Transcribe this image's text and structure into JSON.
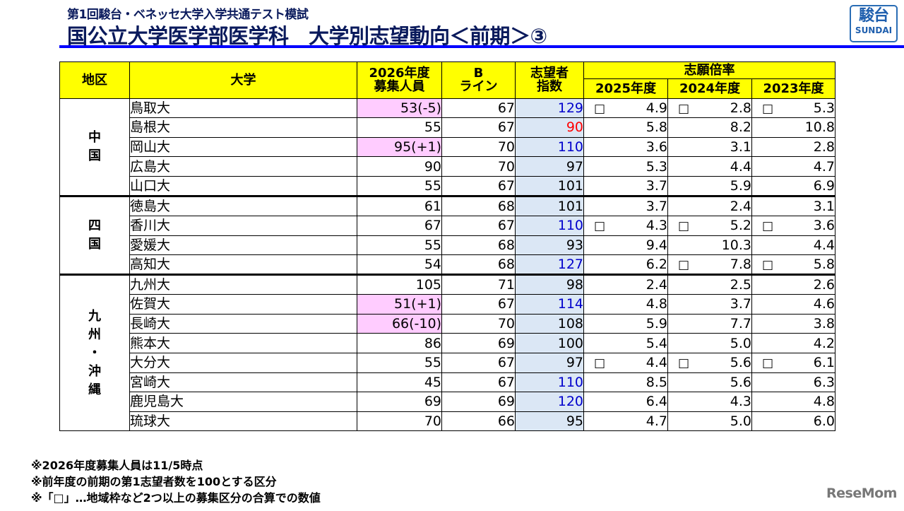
{
  "header": {
    "subtitle": "第1回駿台・ベネッセ大学入学共通テスト模試",
    "title": "国公立大学医学部医学科　大学別志望動向＜前期＞③",
    "logo_kanji": "駿台",
    "logo_en": "SUNDAI",
    "accent_color": "#0000ff"
  },
  "table": {
    "columns": {
      "region": "地区",
      "university": "大学",
      "capacity_line1": "2026年度",
      "capacity_line2": "募集人員",
      "bline_line1": "B",
      "bline_line2": "ライン",
      "index_line1": "志望者",
      "index_line2": "指数",
      "ratio_group": "志願倍率",
      "ratio_2025": "2025年度",
      "ratio_2024": "2024年度",
      "ratio_2023": "2023年度"
    },
    "box_glyph": "□",
    "regions": [
      {
        "name_chars": [
          "中",
          "国"
        ],
        "rows": [
          {
            "university": "鳥取大",
            "capacity": "53(-5)",
            "capacity_changed": true,
            "bline": "67",
            "index": "129",
            "index_color": "blue",
            "r2025": "4.9",
            "r2025_box": true,
            "r2024": "2.8",
            "r2024_box": true,
            "r2023": "5.3",
            "r2023_box": true
          },
          {
            "university": "島根大",
            "capacity": "55",
            "capacity_changed": false,
            "bline": "67",
            "index": "90",
            "index_color": "red",
            "r2025": "5.8",
            "r2025_box": false,
            "r2024": "8.2",
            "r2024_box": false,
            "r2023": "10.8",
            "r2023_box": false
          },
          {
            "university": "岡山大",
            "capacity": "95(+1)",
            "capacity_changed": true,
            "bline": "70",
            "index": "110",
            "index_color": "blue",
            "r2025": "3.6",
            "r2025_box": false,
            "r2024": "3.1",
            "r2024_box": false,
            "r2023": "2.8",
            "r2023_box": false
          },
          {
            "university": "広島大",
            "capacity": "90",
            "capacity_changed": false,
            "bline": "70",
            "index": "97",
            "index_color": "black",
            "r2025": "5.3",
            "r2025_box": false,
            "r2024": "4.4",
            "r2024_box": false,
            "r2023": "4.7",
            "r2023_box": false
          },
          {
            "university": "山口大",
            "capacity": "55",
            "capacity_changed": false,
            "bline": "67",
            "index": "101",
            "index_color": "black",
            "r2025": "3.7",
            "r2025_box": false,
            "r2024": "5.9",
            "r2024_box": false,
            "r2023": "6.9",
            "r2023_box": false
          }
        ]
      },
      {
        "name_chars": [
          "四",
          "国"
        ],
        "rows": [
          {
            "university": "徳島大",
            "capacity": "61",
            "capacity_changed": false,
            "bline": "68",
            "index": "101",
            "index_color": "black",
            "r2025": "3.7",
            "r2025_box": false,
            "r2024": "2.4",
            "r2024_box": false,
            "r2023": "3.1",
            "r2023_box": false
          },
          {
            "university": "香川大",
            "capacity": "67",
            "capacity_changed": false,
            "bline": "67",
            "index": "110",
            "index_color": "blue",
            "r2025": "4.3",
            "r2025_box": true,
            "r2024": "5.2",
            "r2024_box": true,
            "r2023": "3.6",
            "r2023_box": true
          },
          {
            "university": "愛媛大",
            "capacity": "55",
            "capacity_changed": false,
            "bline": "68",
            "index": "93",
            "index_color": "black",
            "r2025": "9.4",
            "r2025_box": false,
            "r2024": "10.3",
            "r2024_box": false,
            "r2023": "4.4",
            "r2023_box": false
          },
          {
            "university": "高知大",
            "capacity": "54",
            "capacity_changed": false,
            "bline": "68",
            "index": "127",
            "index_color": "blue",
            "r2025": "6.2",
            "r2025_box": false,
            "r2024": "7.8",
            "r2024_box": true,
            "r2023": "5.8",
            "r2023_box": true
          }
        ]
      },
      {
        "name_chars": [
          "九",
          "州",
          "・",
          "沖",
          "縄"
        ],
        "rows": [
          {
            "university": "九州大",
            "capacity": "105",
            "capacity_changed": false,
            "bline": "71",
            "index": "98",
            "index_color": "black",
            "r2025": "2.4",
            "r2025_box": false,
            "r2024": "2.5",
            "r2024_box": false,
            "r2023": "2.6",
            "r2023_box": false
          },
          {
            "university": "佐賀大",
            "capacity": "51(+1)",
            "capacity_changed": true,
            "bline": "67",
            "index": "114",
            "index_color": "blue",
            "r2025": "4.8",
            "r2025_box": false,
            "r2024": "3.7",
            "r2024_box": false,
            "r2023": "4.6",
            "r2023_box": false
          },
          {
            "university": "長崎大",
            "capacity": "66(-10)",
            "capacity_changed": true,
            "bline": "70",
            "index": "108",
            "index_color": "black",
            "r2025": "5.9",
            "r2025_box": false,
            "r2024": "7.7",
            "r2024_box": false,
            "r2023": "3.8",
            "r2023_box": false
          },
          {
            "university": "熊本大",
            "capacity": "86",
            "capacity_changed": false,
            "bline": "69",
            "index": "100",
            "index_color": "black",
            "r2025": "5.4",
            "r2025_box": false,
            "r2024": "5.0",
            "r2024_box": false,
            "r2023": "4.2",
            "r2023_box": false
          },
          {
            "university": "大分大",
            "capacity": "55",
            "capacity_changed": false,
            "bline": "67",
            "index": "97",
            "index_color": "black",
            "r2025": "4.4",
            "r2025_box": true,
            "r2024": "5.6",
            "r2024_box": true,
            "r2023": "6.1",
            "r2023_box": true
          },
          {
            "university": "宮崎大",
            "capacity": "45",
            "capacity_changed": false,
            "bline": "67",
            "index": "110",
            "index_color": "blue",
            "r2025": "8.5",
            "r2025_box": false,
            "r2024": "5.6",
            "r2024_box": false,
            "r2023": "6.3",
            "r2023_box": false
          },
          {
            "university": "鹿児島大",
            "capacity": "69",
            "capacity_changed": false,
            "bline": "69",
            "index": "120",
            "index_color": "blue",
            "r2025": "6.4",
            "r2025_box": false,
            "r2024": "4.3",
            "r2024_box": false,
            "r2023": "4.8",
            "r2023_box": false
          },
          {
            "university": "琉球大",
            "capacity": "70",
            "capacity_changed": false,
            "bline": "66",
            "index": "95",
            "index_color": "black",
            "r2025": "4.7",
            "r2025_box": false,
            "r2024": "5.0",
            "r2024_box": false,
            "r2023": "6.0",
            "r2023_box": false
          }
        ]
      }
    ]
  },
  "notes": [
    "※2026年度募集人員は11/5時点",
    "※前年度の前期の第1志望者数を100とする区分",
    "※「□」…地域枠など2つ以上の募集区分の合算での数値"
  ],
  "watermark": "ReseMom"
}
